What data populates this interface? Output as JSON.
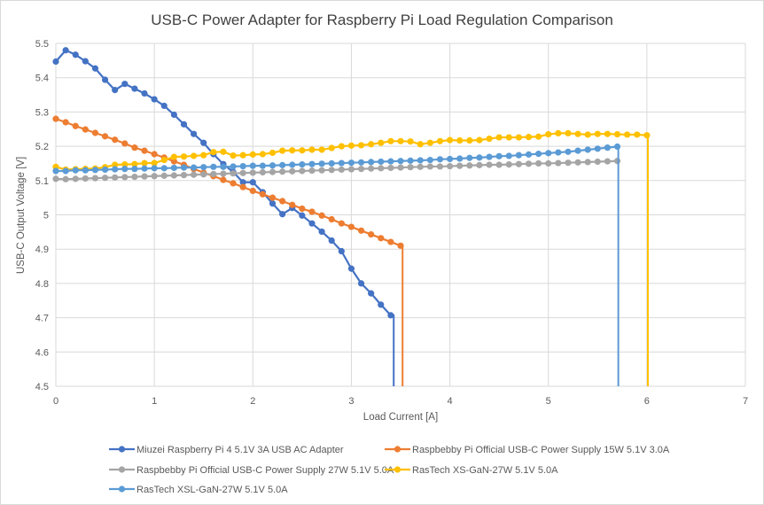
{
  "chart_data": {
    "type": "line",
    "title": "USB-C Power Adapter for Raspberry Pi Load Regulation Comparison",
    "xlabel": "Load Current [A]",
    "ylabel": "USB-C Output Voltage  [V]",
    "xlim": [
      0,
      7
    ],
    "ylim": [
      4.5,
      5.5
    ],
    "xticks": [
      "0",
      "1",
      "2",
      "3",
      "4",
      "5",
      "6",
      "7"
    ],
    "yticks": [
      "4.5",
      "4.6",
      "4.7",
      "4.8",
      "4.9",
      "5",
      "5.1",
      "5.2",
      "5.3",
      "5.4",
      "5.5"
    ],
    "grid": true,
    "legend_position": "bottom",
    "x_start": 0,
    "x_step": 0.1,
    "series": [
      {
        "name": "Miuzei Raspberry Pi 4 5.1V 3A USB AC Adapter",
        "color": "#4472C4",
        "drop_x": 3.43,
        "values": [
          5.447,
          5.48,
          5.467,
          5.448,
          5.427,
          5.394,
          5.364,
          5.382,
          5.368,
          5.354,
          5.337,
          5.318,
          5.292,
          5.264,
          5.236,
          5.21,
          5.177,
          5.148,
          5.125,
          5.095,
          5.095,
          5.066,
          5.033,
          5.002,
          5.02,
          4.998,
          4.975,
          4.951,
          4.925,
          4.894,
          4.843,
          4.8,
          4.771,
          4.738,
          4.707
        ]
      },
      {
        "name": "Raspbebby Pi Official USB-C Power Supply 15W 5.1V 3.0A",
        "color": "#ED7D31",
        "drop_x": 3.52,
        "values": [
          5.28,
          5.27,
          5.259,
          5.249,
          5.239,
          5.229,
          5.219,
          5.208,
          5.196,
          5.187,
          5.177,
          5.167,
          5.156,
          5.146,
          5.134,
          5.123,
          5.113,
          5.102,
          5.092,
          5.081,
          5.07,
          5.06,
          5.05,
          5.04,
          5.029,
          5.018,
          5.009,
          4.998,
          4.987,
          4.975,
          4.965,
          4.954,
          4.943,
          4.932,
          4.921,
          4.91
        ]
      },
      {
        "name": "Raspbebby Pi Official USB-C Power Supply 27W 5.1V 5.0A",
        "color": "#A5A5A5",
        "drop_x": null,
        "values": [
          5.105,
          5.104,
          5.105,
          5.106,
          5.107,
          5.108,
          5.109,
          5.11,
          5.111,
          5.112,
          5.113,
          5.114,
          5.115,
          5.116,
          5.117,
          5.118,
          5.119,
          5.12,
          5.121,
          5.122,
          5.123,
          5.124,
          5.125,
          5.126,
          5.127,
          5.128,
          5.129,
          5.13,
          5.131,
          5.132,
          5.133,
          5.134,
          5.135,
          5.136,
          5.137,
          5.138,
          5.139,
          5.14,
          5.141,
          5.141,
          5.142,
          5.143,
          5.144,
          5.145,
          5.146,
          5.146,
          5.147,
          5.148,
          5.149,
          5.15,
          5.15,
          5.151,
          5.152,
          5.153,
          5.154,
          5.155,
          5.156,
          5.157
        ]
      },
      {
        "name": "RasTech XS-GaN-27W 5.1V 5.0A",
        "color": "#FFC000",
        "drop_x": 6.01,
        "values": [
          5.14,
          5.132,
          5.133,
          5.134,
          5.135,
          5.139,
          5.146,
          5.147,
          5.148,
          5.151,
          5.151,
          5.16,
          5.169,
          5.17,
          5.172,
          5.174,
          5.183,
          5.184,
          5.173,
          5.174,
          5.176,
          5.177,
          5.181,
          5.187,
          5.188,
          5.188,
          5.19,
          5.19,
          5.195,
          5.2,
          5.202,
          5.203,
          5.206,
          5.21,
          5.215,
          5.215,
          5.214,
          5.206,
          5.21,
          5.215,
          5.218,
          5.217,
          5.217,
          5.218,
          5.222,
          5.226,
          5.226,
          5.226,
          5.227,
          5.228,
          5.235,
          5.238,
          5.238,
          5.236,
          5.234,
          5.236,
          5.236,
          5.235,
          5.234,
          5.234,
          5.232
        ]
      },
      {
        "name": "RasTech XSL-GaN-27W 5.1V 5.0A",
        "color": "#5B9BD5",
        "drop_x": 5.71,
        "values": [
          5.128,
          5.128,
          5.13,
          5.13,
          5.131,
          5.132,
          5.133,
          5.134,
          5.134,
          5.135,
          5.136,
          5.136,
          5.137,
          5.138,
          5.138,
          5.139,
          5.14,
          5.14,
          5.141,
          5.142,
          5.143,
          5.143,
          5.144,
          5.145,
          5.146,
          5.147,
          5.148,
          5.149,
          5.15,
          5.151,
          5.152,
          5.153,
          5.154,
          5.155,
          5.156,
          5.157,
          5.158,
          5.159,
          5.16,
          5.162,
          5.163,
          5.164,
          5.166,
          5.167,
          5.169,
          5.171,
          5.172,
          5.174,
          5.176,
          5.178,
          5.18,
          5.182,
          5.184,
          5.187,
          5.19,
          5.193,
          5.196,
          5.199
        ]
      }
    ]
  }
}
